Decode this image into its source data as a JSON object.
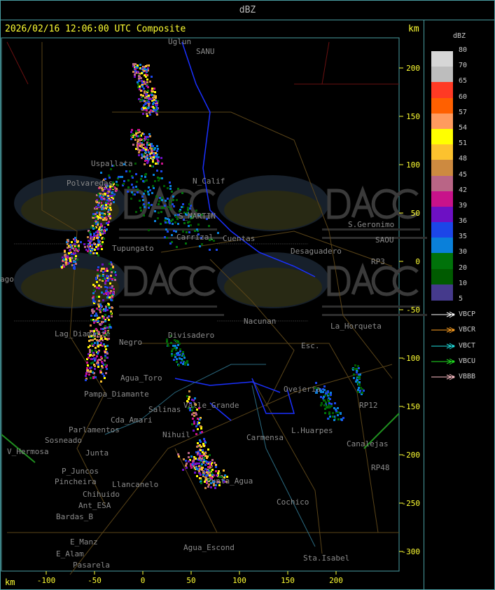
{
  "header": {
    "title": "dBZ"
  },
  "main": {
    "title": "2026/02/16 12:06:00 UTC Composite",
    "km_label_top": "km",
    "km_label_bottom": "km",
    "y_ticks": [
      "200",
      "150",
      "100",
      "50",
      "0",
      "-50",
      "-100",
      "-150",
      "-200",
      "-250",
      "-300"
    ],
    "x_ticks": [
      "-100",
      "-50",
      "0",
      "50",
      "100",
      "150",
      "200"
    ],
    "watermark": {
      "logo_text": "DACC",
      "subtitle_1": "Dirección de Agricultura",
      "subtitle_2": "y Contingencias Climáticas",
      "url": "http://www.contingencias.mendoza.gov.ar"
    },
    "places": [
      "Uspallata",
      "Polvaredas",
      "N_Calif",
      "S_MARTIN",
      "Cuentas",
      "Carrizal",
      "Tupungato",
      "Desaguadero",
      "S.Geronimo",
      "SAOU",
      "La_Horqueta",
      "Nacunan",
      "Divisadero",
      "Lag_Diamante",
      "Negro",
      "Agua_Toro",
      "Pampa_Diamante",
      "Valle_Grande",
      "Salinas",
      "Nihuil",
      "Sosneado",
      "Parlamentos",
      "Cda_Amari",
      "V_Hermosa",
      "Junta",
      "P_Juncos",
      "Pincheira",
      "Llancanelo",
      "Chihuido",
      "Ant_ESA",
      "Bardas_B",
      "E_Manz",
      "E_Alam",
      "Pasarela",
      "Agua_Escond",
      "Punta_Agua",
      "Cochico",
      "Sta.Isabel",
      "Canalejas",
      "L.Huarpes",
      "Ovejeria",
      "Carmensa",
      "Esc.",
      "RP3",
      "RP12",
      "RP48",
      "Uglun",
      "SANU",
      "ago"
    ]
  },
  "legend": {
    "unit": "dBZ",
    "levels": [
      "80",
      "70",
      "65",
      "60",
      "57",
      "54",
      "51",
      "48",
      "45",
      "42",
      "39",
      "36",
      "35",
      "30",
      "20",
      "10",
      "5"
    ],
    "colors": [
      "#d6d6d6",
      "#bdbdbd",
      "#ff3a24",
      "#ff6000",
      "#ff9b5e",
      "#ffff00",
      "#fcc22e",
      "#cd8a40",
      "#b96586",
      "#c8128a",
      "#6d10c4",
      "#1c46e8",
      "#0a80da",
      "#00720a",
      "#005b00",
      "#453a8c"
    ],
    "radars": [
      {
        "name": "VBCP",
        "color": "#ffffff"
      },
      {
        "name": "VBCR",
        "color": "#ffa020"
      },
      {
        "name": "VBCT",
        "color": "#20e0e0"
      },
      {
        "name": "VBCU",
        "color": "#20e020"
      },
      {
        "name": "VBBB",
        "color": "#ffc0c8"
      }
    ]
  }
}
